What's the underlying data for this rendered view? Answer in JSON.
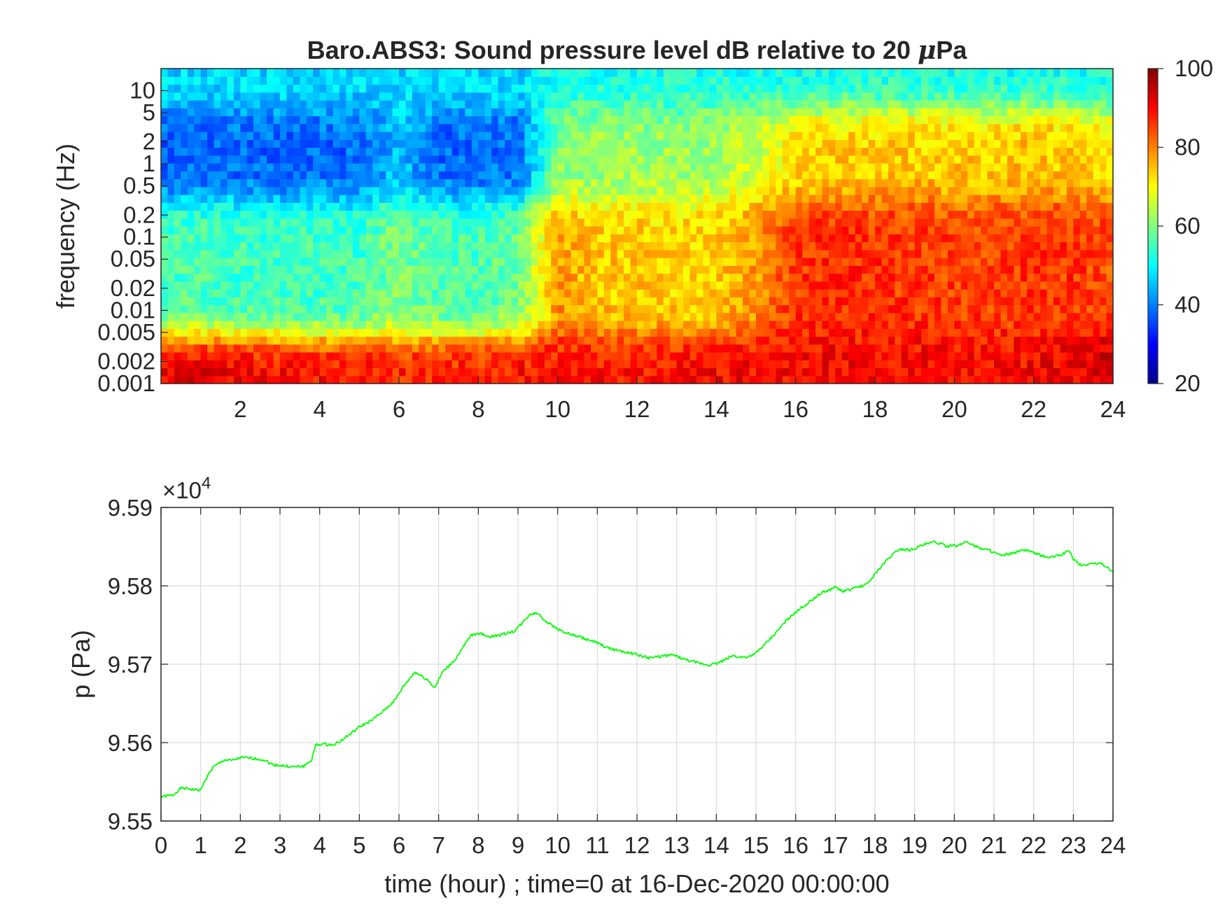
{
  "chart_data": [
    {
      "type": "heatmap",
      "title_text": "Baro.ABS3: Sound pressure level dB relative to 20 ",
      "title_mu": "μ",
      "title_tail": "Pa",
      "ylabel": "frequency (Hz)",
      "xlabel": "",
      "xlim": [
        0,
        24
      ],
      "x_ticks": [
        2,
        4,
        6,
        8,
        10,
        12,
        14,
        16,
        18,
        20,
        22,
        24
      ],
      "y_scale": "log",
      "ylim": [
        0.001,
        20
      ],
      "y_ticks": [
        {
          "value": 0.001,
          "label": "0.001"
        },
        {
          "value": 0.002,
          "label": "0.002"
        },
        {
          "value": 0.005,
          "label": "0.005"
        },
        {
          "value": 0.01,
          "label": "0.01"
        },
        {
          "value": 0.02,
          "label": "0.02"
        },
        {
          "value": 0.05,
          "label": "0.05"
        },
        {
          "value": 0.1,
          "label": "0.1"
        },
        {
          "value": 0.2,
          "label": "0.2"
        },
        {
          "value": 0.5,
          "label": "0.5"
        },
        {
          "value": 1,
          "label": "1"
        },
        {
          "value": 2,
          "label": "2"
        },
        {
          "value": 5,
          "label": "5"
        },
        {
          "value": 10,
          "label": "10"
        }
      ],
      "colormap": "jet",
      "clim": [
        20,
        100
      ],
      "colorbar_ticks": [
        20,
        40,
        60,
        80,
        100
      ],
      "colorbar_placement": "right",
      "approx_level_db": {
        "note_times_hours": [
          0,
          1,
          2,
          3,
          4,
          5,
          6,
          7,
          8,
          9,
          10,
          11,
          12,
          13,
          14,
          15,
          16,
          17,
          18,
          19,
          20,
          21,
          22,
          23,
          24
        ],
        "band_above_5Hz": [
          48,
          48,
          48,
          48,
          48,
          48,
          48,
          48,
          48,
          48,
          52,
          52,
          52,
          52,
          52,
          52,
          52,
          52,
          52,
          52,
          52,
          52,
          52,
          52,
          52
        ],
        "band_0.5_to_5Hz": [
          38,
          38,
          38,
          38,
          38,
          38,
          45,
          38,
          38,
          38,
          60,
          62,
          62,
          62,
          63,
          66,
          72,
          74,
          74,
          74,
          74,
          74,
          75,
          74,
          72
        ],
        "band_0.01_to_0.5Hz": [
          56,
          56,
          55,
          55,
          55,
          55,
          60,
          56,
          56,
          58,
          78,
          74,
          74,
          73,
          74,
          78,
          86,
          87,
          86,
          86,
          85,
          85,
          86,
          86,
          84
        ],
        "band_below_0.005Hz": [
          92,
          92,
          91,
          90,
          89,
          89,
          88,
          88,
          88,
          89,
          89,
          89,
          89,
          89,
          90,
          90,
          90,
          90,
          90,
          90,
          90,
          90,
          90,
          91,
          95
        ]
      }
    },
    {
      "type": "line",
      "xlabel": "time (hour) ; time=0 at 16-Dec-2020 00:00:00",
      "ylabel": "p (Pa)",
      "exponent_label": "×10",
      "exponent_power": "4",
      "xlim": [
        0,
        24
      ],
      "ylim": [
        9.55,
        9.59
      ],
      "x_ticks": [
        0,
        1,
        2,
        3,
        4,
        5,
        6,
        7,
        8,
        9,
        10,
        11,
        12,
        13,
        14,
        15,
        16,
        17,
        18,
        19,
        20,
        21,
        22,
        23,
        24
      ],
      "y_ticks": [
        {
          "value": 9.55,
          "label": "9.55"
        },
        {
          "value": 9.56,
          "label": "9.56"
        },
        {
          "value": 9.57,
          "label": "9.57"
        },
        {
          "value": 9.58,
          "label": "9.58"
        },
        {
          "value": 9.59,
          "label": "9.59"
        }
      ],
      "grid": true,
      "series": [
        {
          "color": "#00ff00",
          "x": [
            0,
            0.3,
            0.5,
            0.7,
            1.0,
            1.1,
            1.3,
            1.6,
            1.8,
            2.0,
            2.3,
            2.6,
            2.8,
            3.0,
            3.3,
            3.6,
            3.8,
            3.9,
            4.1,
            4.3,
            4.5,
            4.8,
            5.0,
            5.3,
            5.6,
            5.9,
            6.1,
            6.4,
            6.7,
            6.9,
            7.1,
            7.4,
            7.6,
            7.8,
            8.0,
            8.3,
            8.6,
            8.9,
            9.1,
            9.3,
            9.5,
            9.7,
            9.9,
            10.2,
            10.6,
            11.0,
            11.3,
            11.6,
            12.0,
            12.3,
            12.6,
            12.9,
            13.2,
            13.5,
            13.8,
            14.0,
            14.2,
            14.4,
            14.6,
            14.9,
            15.2,
            15.5,
            15.8,
            16.1,
            16.4,
            16.7,
            17.0,
            17.2,
            17.5,
            17.8,
            18.0,
            18.3,
            18.6,
            18.9,
            19.2,
            19.5,
            19.8,
            20.1,
            20.3,
            20.6,
            20.9,
            21.2,
            21.5,
            21.8,
            22.1,
            22.4,
            22.7,
            22.9,
            23.0,
            23.2,
            23.4,
            23.6,
            23.8,
            24.0
          ],
          "y": [
            9.5531,
            9.5533,
            9.5542,
            9.5541,
            9.5539,
            9.5551,
            9.5568,
            9.5578,
            9.5577,
            9.5581,
            9.558,
            9.5578,
            9.5572,
            9.5571,
            9.5569,
            9.557,
            9.5578,
            9.5597,
            9.5598,
            9.5597,
            9.5601,
            9.5612,
            9.562,
            9.5628,
            9.564,
            9.5654,
            9.5671,
            9.569,
            9.5681,
            9.567,
            9.569,
            9.5705,
            9.572,
            9.5736,
            9.574,
            9.5735,
            9.5738,
            9.5742,
            9.5752,
            9.5764,
            9.5765,
            9.5755,
            9.5748,
            9.574,
            9.5734,
            9.5727,
            9.572,
            9.5717,
            9.5712,
            9.5708,
            9.571,
            9.5712,
            9.5706,
            9.5702,
            9.5699,
            9.5701,
            9.5705,
            9.5711,
            9.5709,
            9.571,
            9.5724,
            9.574,
            9.5758,
            9.577,
            9.5782,
            9.5792,
            9.5798,
            9.5793,
            9.5797,
            9.5802,
            9.5815,
            9.5833,
            9.5847,
            9.5846,
            9.5852,
            9.5856,
            9.5851,
            9.5851,
            9.5857,
            9.5849,
            9.5845,
            9.5838,
            9.5842,
            9.5846,
            9.584,
            9.5836,
            9.584,
            9.5845,
            9.5834,
            9.5826,
            9.5828,
            9.5829,
            9.5826,
            9.5818
          ]
        }
      ]
    }
  ],
  "colors": {
    "line": "#00ff00",
    "axes": "#262626",
    "grid": "#dcdcdc"
  }
}
